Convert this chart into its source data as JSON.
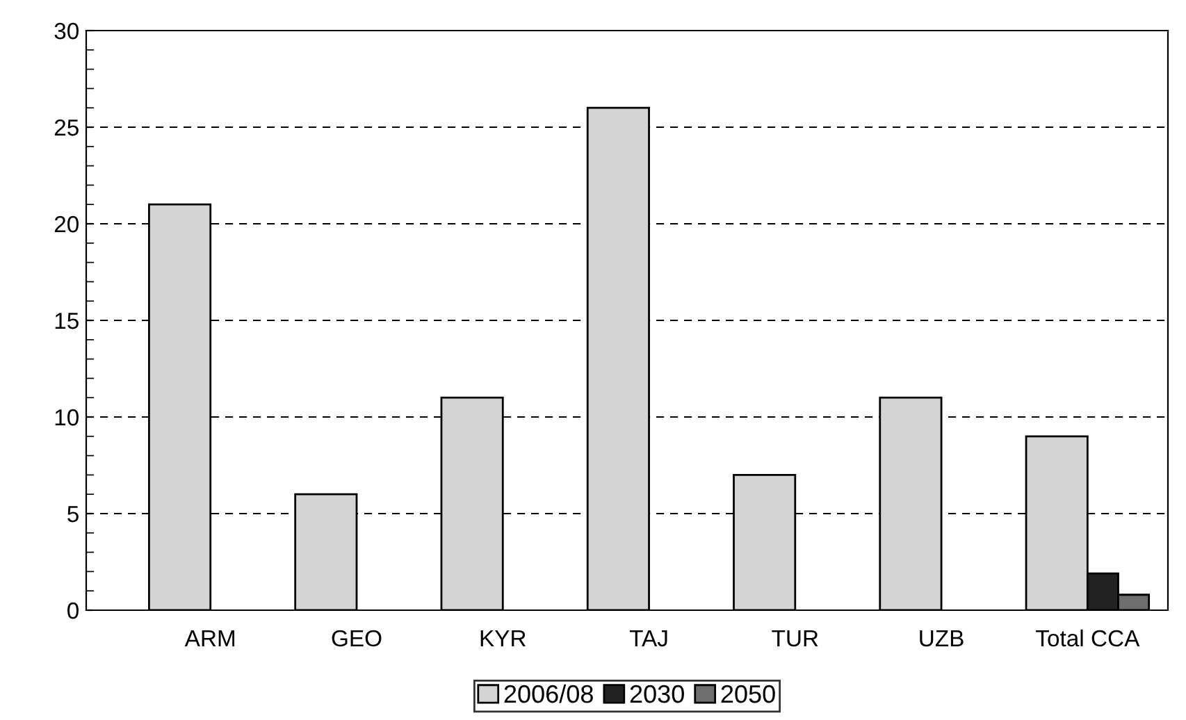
{
  "chart_data": {
    "type": "bar",
    "categories": [
      "ARM",
      "GEO",
      "KYR",
      "TAJ",
      "TUR",
      "UZB",
      "Total CCA"
    ],
    "series": [
      {
        "name": "2006/08",
        "color": "#d4d4d4",
        "values": [
          21,
          6,
          11,
          26,
          7,
          11,
          9
        ]
      },
      {
        "name": "2030",
        "color": "#222222",
        "values": [
          null,
          null,
          null,
          null,
          null,
          null,
          1.9
        ]
      },
      {
        "name": "2050",
        "color": "#6e6e6e",
        "values": [
          null,
          null,
          null,
          null,
          null,
          null,
          0.8
        ]
      }
    ],
    "ylim": [
      0,
      30
    ],
    "yticks": [
      0,
      5,
      10,
      15,
      20,
      25,
      30
    ],
    "grid": "y",
    "legend": "bottom"
  }
}
